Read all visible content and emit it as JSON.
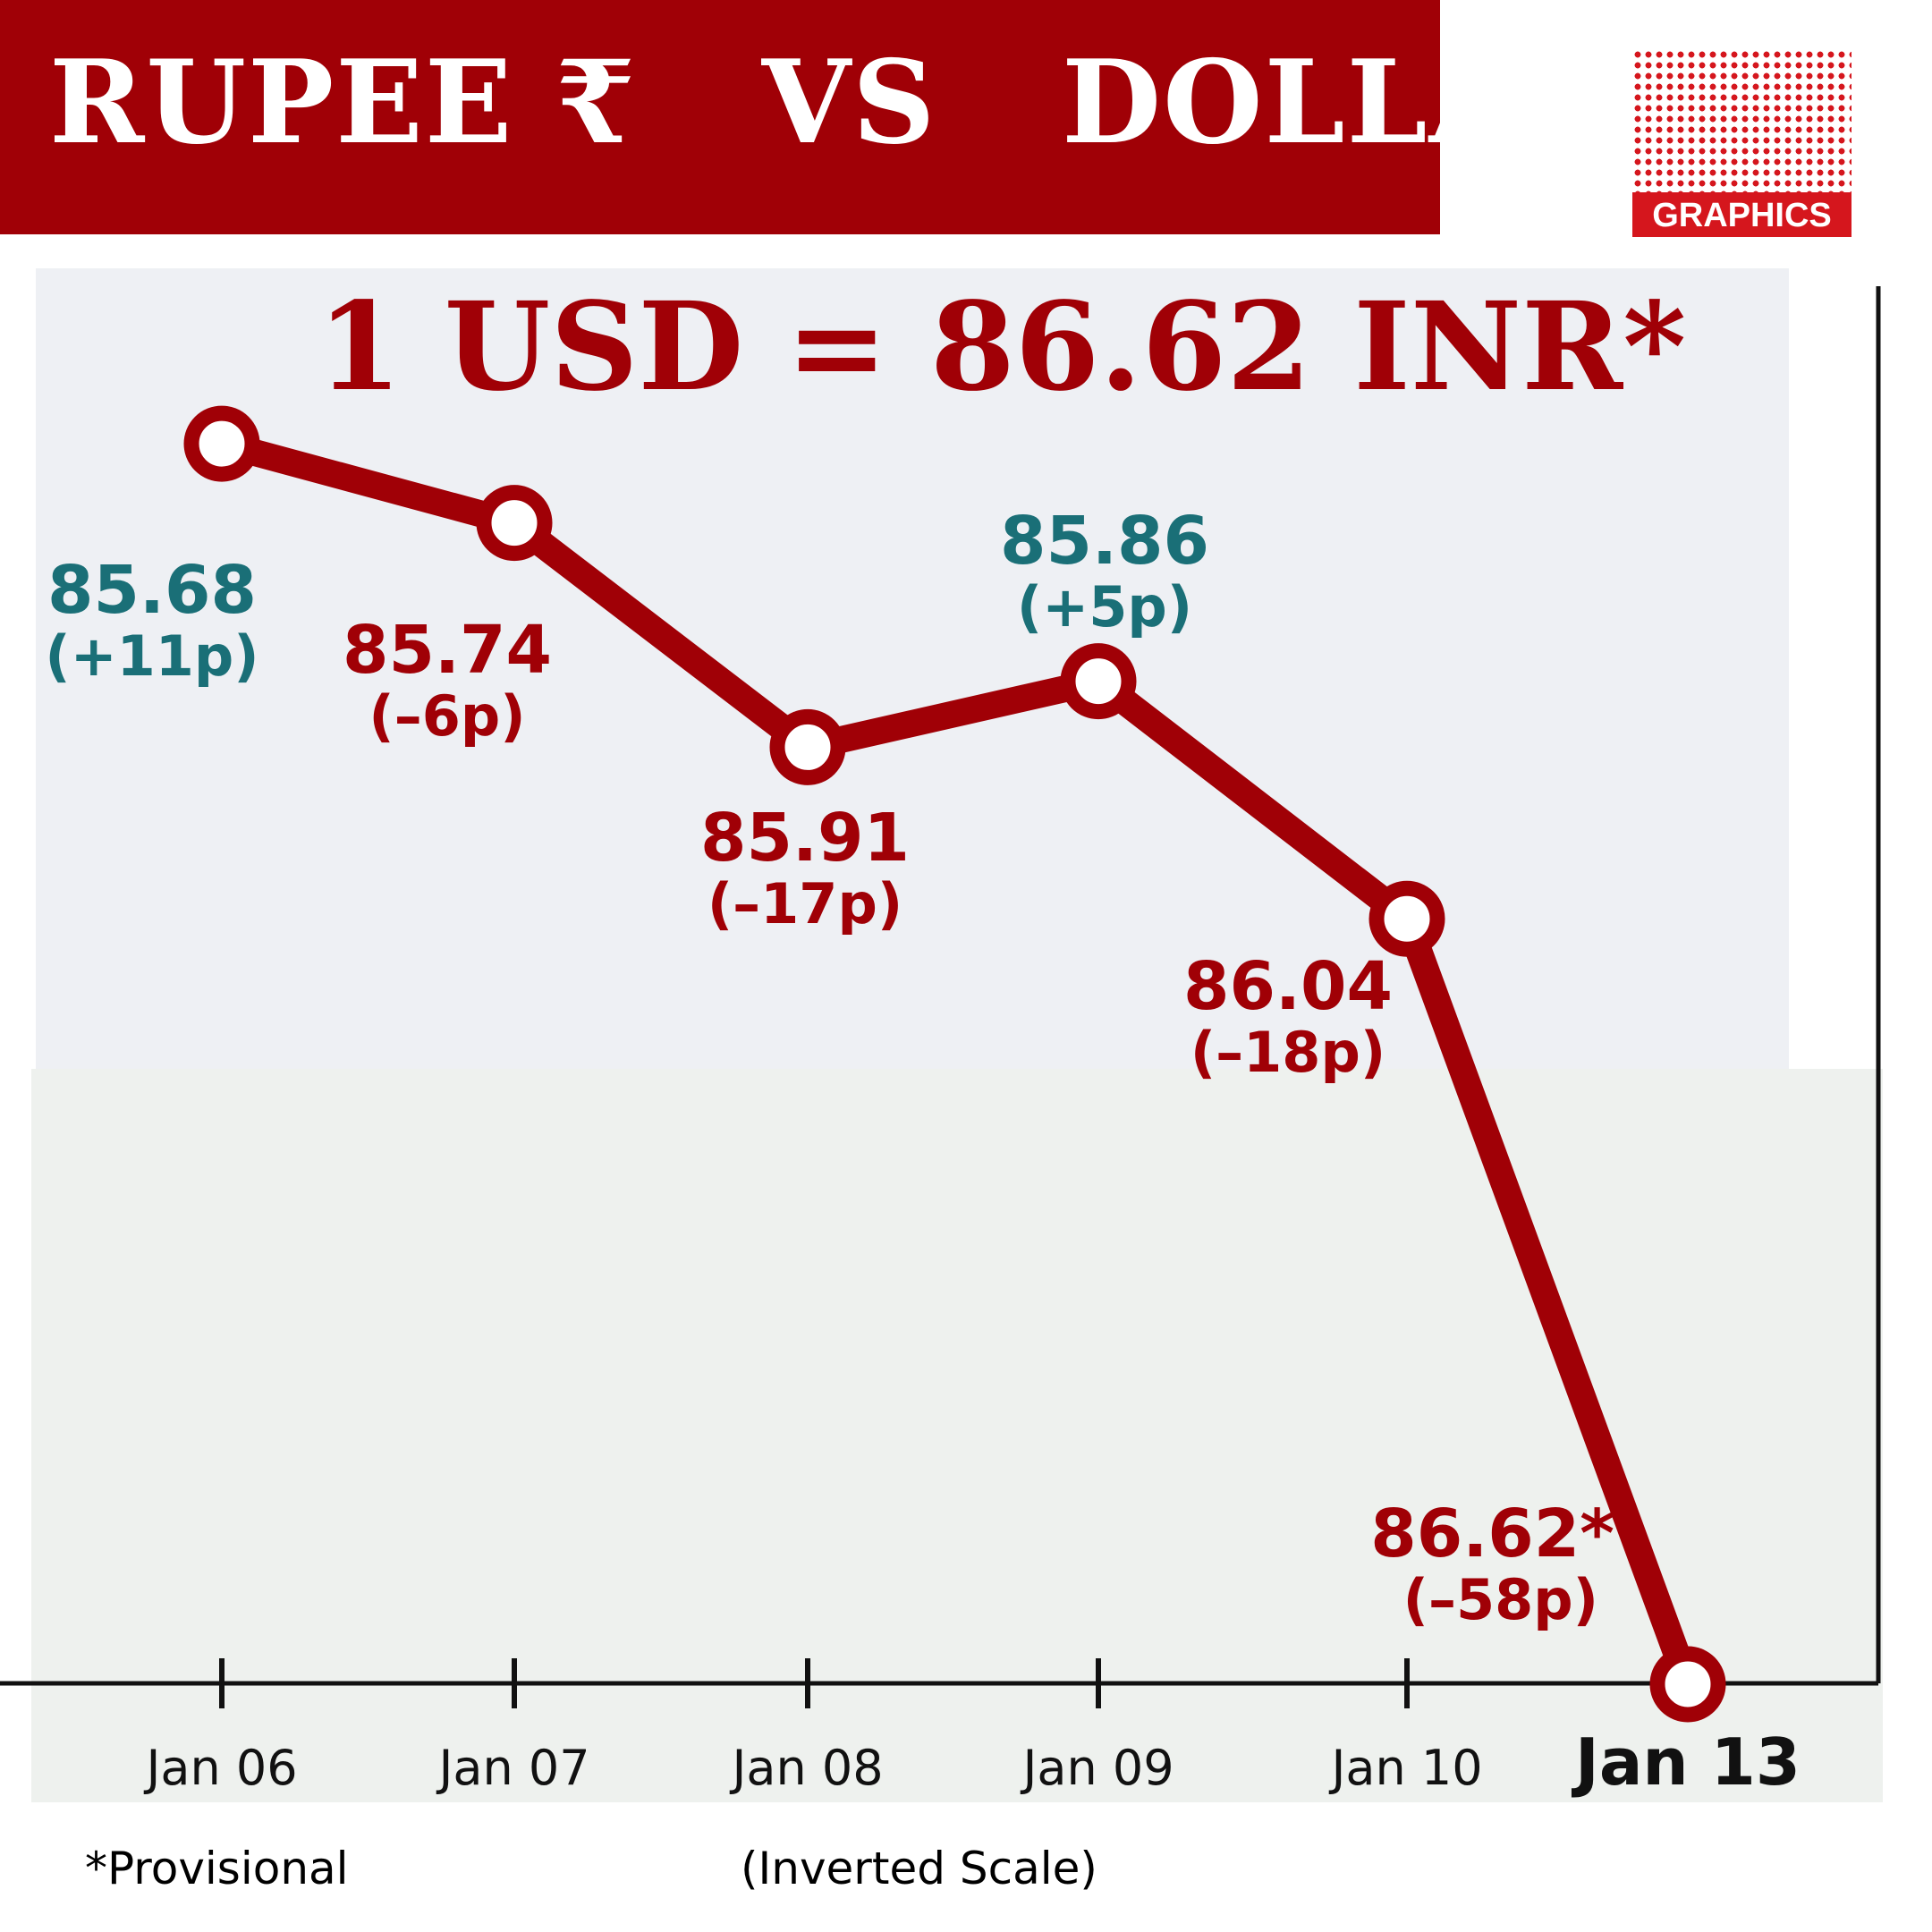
{
  "header": {
    "title": "RUPEE ₹   VS   DOLLAR $",
    "logo_text": "GRAPHICS"
  },
  "footer": {
    "provisional_note": "*Provisional",
    "scale_note": "(Inverted Scale)"
  },
  "colors": {
    "title_bar": "#a00006",
    "line": "#a00006",
    "rise_label": "#1a6f77",
    "fall_label": "#a00006",
    "logo_red": "#d5161d"
  },
  "chart_data": {
    "type": "line",
    "title": "1 USD = 86.62 INR*",
    "x": [
      "Jan 06",
      "Jan 07",
      "Jan 08",
      "Jan 09",
      "Jan 10",
      "Jan 13"
    ],
    "series": [
      {
        "values": [
          85.68,
          85.74,
          85.91,
          85.86,
          86.04,
          86.62
        ],
        "value_labels": [
          "85.68",
          "85.74",
          "85.91",
          "85.86",
          "86.04",
          "86.62*"
        ],
        "change_labels": [
          "(+11p)",
          "(–6p)",
          "(–17p)",
          "(+5p)",
          "(–18p)",
          "(–58p)"
        ],
        "direction": [
          "rise",
          "fall",
          "fall",
          "rise",
          "fall",
          "fall"
        ]
      }
    ],
    "y_inverted": true,
    "ylim": [
      85.52,
      86.74
    ],
    "grid": false,
    "highlight_category": "Jan 13"
  }
}
